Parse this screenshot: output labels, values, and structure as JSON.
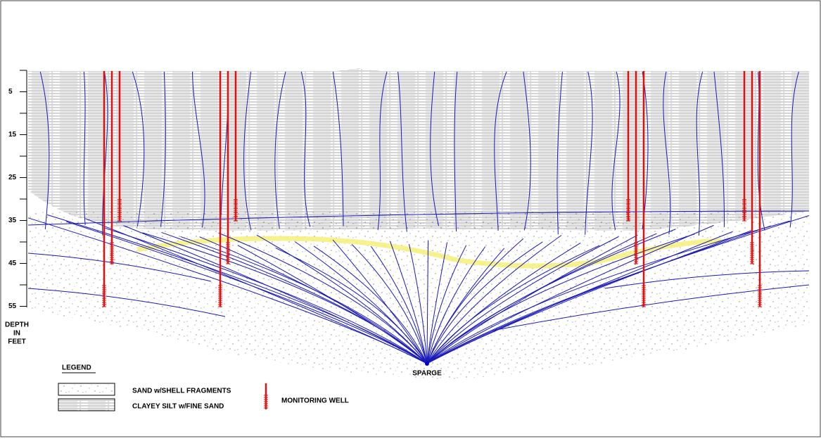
{
  "depth_axis": {
    "label_lines": [
      "DEPTH",
      "IN",
      "FEET"
    ],
    "ticks": [
      5,
      15,
      25,
      35,
      45,
      55
    ]
  },
  "sparge_label": "SPARGE",
  "legend": {
    "title": "LEGEND",
    "items": [
      "SAND w/SHELL FRAGMENTS",
      "CLAYEY SILT w/FINE SAND",
      "MONITORING WELL"
    ]
  }
}
